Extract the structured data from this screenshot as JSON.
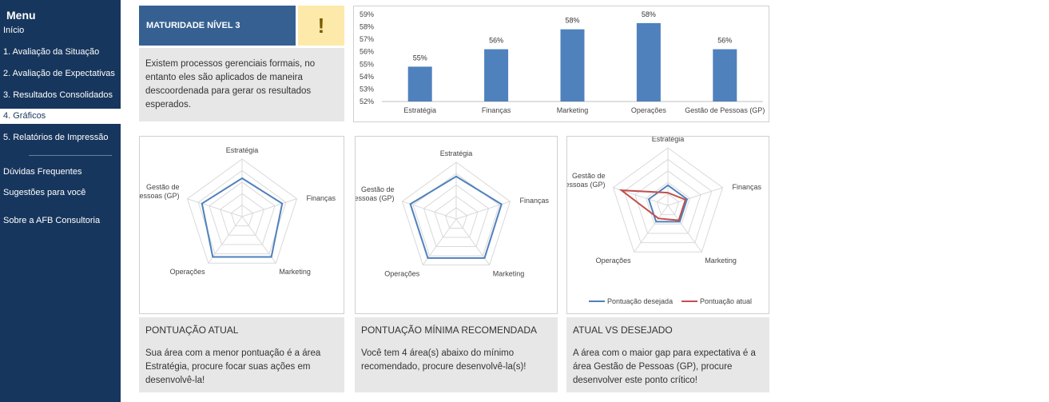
{
  "menu": {
    "title": "Menu",
    "items": [
      {
        "label": "Início"
      },
      {
        "label": "1. Avaliação da Situação"
      },
      {
        "label": "2. Avaliação de Expectativas"
      },
      {
        "label": "3. Resultados Consolidados"
      },
      {
        "label": "4. Gráficos"
      },
      {
        "label": "5. Relatórios de Impressão"
      },
      {
        "label": "Dúvidas Frequentes"
      },
      {
        "label": "Sugestões para você"
      },
      {
        "label": "Sobre a AFB Consultoria"
      }
    ]
  },
  "maturity": {
    "title": "MATURIDADE NÍVEL 3",
    "warning": "!",
    "description": "Existem processos gerenciais formais, no entanto eles são aplicados de maneira descoordenada para gerar os resultados esperados."
  },
  "colors": {
    "blue": "#4f81bd",
    "red": "#c0504d",
    "navy": "#17365d",
    "header": "#366092",
    "warn": "#fde9a9"
  },
  "chart_data": [
    {
      "type": "bar",
      "categories": [
        "Estratégia",
        "Finanças",
        "Marketing",
        "Operações",
        "Gestão de Pessoas (GP)"
      ],
      "values": [
        0.55,
        0.56,
        0.58,
        0.58,
        0.56
      ],
      "bar_heights_percent": [
        54.8,
        56.2,
        57.8,
        58.3,
        56.2
      ],
      "data_labels": [
        "55%",
        "56%",
        "58%",
        "58%",
        "56%"
      ],
      "y_ticks": [
        "52%",
        "53%",
        "54%",
        "55%",
        "56%",
        "57%",
        "58%",
        "59%"
      ],
      "ylim": [
        0.52,
        0.59
      ],
      "grid": false
    },
    {
      "type": "radar",
      "axes": [
        "Estratégia",
        "Finanças",
        "Marketing",
        "Operações",
        "Gestão de\nPessoas (GP)"
      ],
      "series": [
        {
          "values": [
            0.55,
            0.56,
            0.58,
            0.58,
            0.56
          ]
        }
      ],
      "rlim": [
        0.45,
        0.6
      ]
    },
    {
      "type": "radar",
      "axes": [
        "Estratégia",
        "Finanças",
        "Marketing",
        "Operações",
        "Gestão de\nPessoas (GP)"
      ],
      "series": [
        {
          "values": [
            0.75,
            0.84,
            0.85,
            0.85,
            0.85
          ]
        }
      ],
      "rlim": [
        0,
        1
      ]
    },
    {
      "type": "radar",
      "axes": [
        "Estratégia",
        "Finanças",
        "Marketing",
        "Operações",
        "Gestão de\nPessoas (GP)"
      ],
      "series": [
        {
          "name": "Pontuação desejada",
          "values": [
            0.35,
            0.35,
            0.35,
            0.35,
            0.35
          ]
        },
        {
          "name": "Pontuação atual",
          "values": [
            0.22,
            0.32,
            0.32,
            0.28,
            0.85
          ]
        }
      ],
      "rlim": [
        0,
        1
      ],
      "legend": "bottom"
    }
  ],
  "panels": [
    {
      "title": "PONTUAÇÃO ATUAL",
      "text": "Sua área com a menor pontuação é a área Estratégia, procure focar suas ações em desenvolvê-la!"
    },
    {
      "title": "PONTUAÇÃO MÍNIMA RECOMENDADA",
      "text": "Você tem 4 área(s) abaixo do mínimo recomendado, procure desenvolvê-la(s)!"
    },
    {
      "title": "ATUAL VS DESEJADO",
      "text": "A área com o maior gap para expectativa é a área Gestão de Pessoas (GP), procure desenvolver este ponto crítico!"
    }
  ]
}
